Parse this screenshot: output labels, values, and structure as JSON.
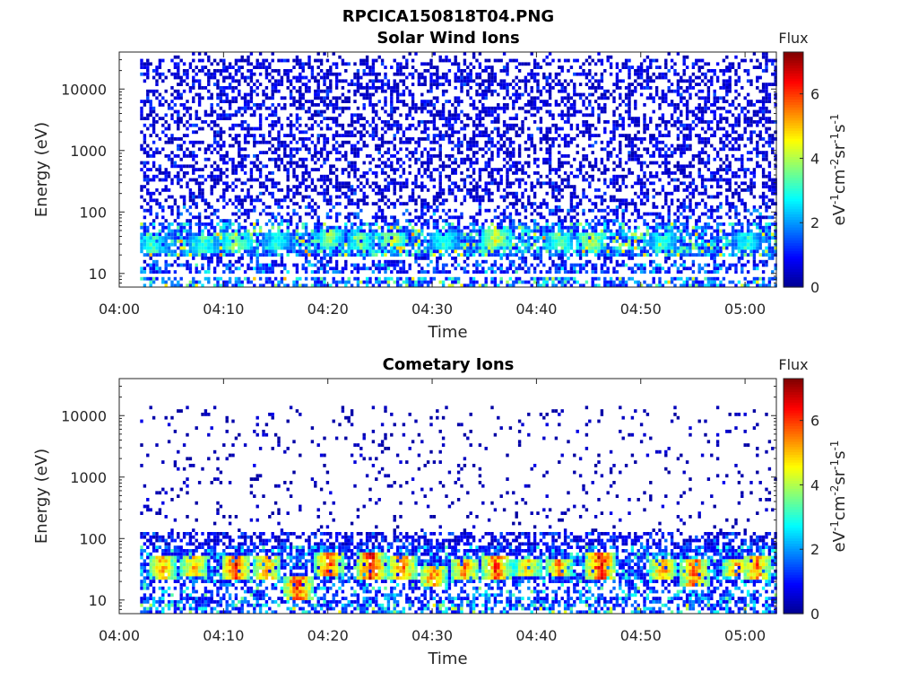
{
  "figure_title": "RPCICA150818T04.PNG",
  "colorbar": {
    "label": "Flux",
    "unit_parts": [
      "eV",
      "-1",
      "cm",
      "-2",
      "sr",
      "-1",
      "s",
      "-1"
    ],
    "ticks": [
      "0",
      "2",
      "4",
      "6"
    ],
    "range": [
      0,
      7.3
    ],
    "colormap": "jet",
    "colors": [
      "#00008f",
      "#0000ff",
      "#007fff",
      "#00ffff",
      "#7fff7f",
      "#ffff00",
      "#ff7f00",
      "#ff0000",
      "#7f0000"
    ]
  },
  "chart_data": [
    {
      "type": "heatmap",
      "title": "Solar Wind Ions",
      "xlabel": "Time",
      "ylabel": "Energy (eV)",
      "x_ticks": [
        "04:00",
        "04:10",
        "04:20",
        "04:30",
        "04:40",
        "04:50",
        "05:00"
      ],
      "y_ticks": [
        "10",
        "100",
        "1000",
        "10000"
      ],
      "xlim": [
        "04:00",
        "05:03"
      ],
      "x_data_start": "04:02",
      "ylim": [
        6,
        40000
      ],
      "yscale": "log",
      "grid": false,
      "flux_range": [
        0,
        7.3
      ],
      "bands": [
        {
          "emin": 6,
          "emax": 9,
          "level": 2.5,
          "density": 0.6
        },
        {
          "emin": 10,
          "emax": 14,
          "level": 1.7,
          "density": 0.55
        },
        {
          "emin": 14,
          "emax": 20,
          "level": 1.2,
          "density": 0.3
        },
        {
          "emin": 20,
          "emax": 45,
          "level": 2.8,
          "density": 0.85
        },
        {
          "emin": 45,
          "emax": 70,
          "level": 2.4,
          "density": 0.7
        },
        {
          "emin": 70,
          "emax": 130,
          "level": 1.2,
          "density": 0.4
        },
        {
          "emin": 130,
          "emax": 30000,
          "level": 0.8,
          "density": 0.45
        },
        {
          "emin": 30000,
          "emax": 40000,
          "level": 0.6,
          "density": 0.12
        }
      ],
      "peaks": [
        {
          "time": "04:03",
          "emin": 25,
          "emax": 35,
          "flux": 3.5
        },
        {
          "time": "04:08",
          "emin": 25,
          "emax": 35,
          "flux": 3.5
        },
        {
          "time": "04:11",
          "emin": 28,
          "emax": 42,
          "flux": 4.2
        },
        {
          "time": "04:15",
          "emin": 28,
          "emax": 40,
          "flux": 3.2
        },
        {
          "time": "04:20",
          "emin": 30,
          "emax": 45,
          "flux": 4.0
        },
        {
          "time": "04:23",
          "emin": 28,
          "emax": 42,
          "flux": 3.6
        },
        {
          "time": "04:26",
          "emin": 30,
          "emax": 42,
          "flux": 4.4
        },
        {
          "time": "04:31",
          "emin": 28,
          "emax": 40,
          "flux": 3.4
        },
        {
          "time": "04:36",
          "emin": 30,
          "emax": 45,
          "flux": 4.6
        },
        {
          "time": "04:42",
          "emin": 28,
          "emax": 40,
          "flux": 3.8
        },
        {
          "time": "04:45",
          "emin": 28,
          "emax": 42,
          "flux": 4.6
        },
        {
          "time": "04:52",
          "emin": 28,
          "emax": 40,
          "flux": 3.3
        },
        {
          "time": "05:00",
          "emin": 28,
          "emax": 40,
          "flux": 3.2
        }
      ]
    },
    {
      "type": "heatmap",
      "title": "Cometary Ions",
      "xlabel": "Time",
      "ylabel": "Energy (eV)",
      "x_ticks": [
        "04:00",
        "04:10",
        "04:20",
        "04:30",
        "04:40",
        "04:50",
        "05:00"
      ],
      "y_ticks": [
        "10",
        "100",
        "1000",
        "10000"
      ],
      "xlim": [
        "04:00",
        "05:03"
      ],
      "x_data_start": "04:02",
      "ylim": [
        6,
        40000
      ],
      "yscale": "log",
      "grid": false,
      "flux_range": [
        0,
        7.3
      ],
      "bands": [
        {
          "emin": 6,
          "emax": 9,
          "level": 2.4,
          "density": 0.6
        },
        {
          "emin": 9,
          "emax": 12,
          "level": 1.8,
          "density": 0.6
        },
        {
          "emin": 12,
          "emax": 20,
          "level": 2.0,
          "density": 0.45
        },
        {
          "emin": 20,
          "emax": 80,
          "level": 1.8,
          "density": 0.75
        },
        {
          "emin": 80,
          "emax": 130,
          "level": 1.0,
          "density": 0.55
        },
        {
          "emin": 130,
          "emax": 14000,
          "level": 0.4,
          "density": 0.07
        }
      ],
      "peaks": [
        {
          "time": "04:04",
          "emin": 25,
          "emax": 45,
          "flux": 5.5
        },
        {
          "time": "04:07",
          "emin": 28,
          "emax": 45,
          "flux": 5.4
        },
        {
          "time": "04:11",
          "emin": 25,
          "emax": 45,
          "flux": 6.5
        },
        {
          "time": "04:14",
          "emin": 25,
          "emax": 45,
          "flux": 5.6
        },
        {
          "time": "04:17",
          "emin": 12,
          "emax": 22,
          "flux": 6.4
        },
        {
          "time": "04:20",
          "emin": 28,
          "emax": 50,
          "flux": 6.2
        },
        {
          "time": "04:24",
          "emin": 25,
          "emax": 50,
          "flux": 6.6
        },
        {
          "time": "04:27",
          "emin": 25,
          "emax": 45,
          "flux": 6.0
        },
        {
          "time": "04:30",
          "emin": 18,
          "emax": 30,
          "flux": 5.8
        },
        {
          "time": "04:33",
          "emin": 25,
          "emax": 40,
          "flux": 5.8
        },
        {
          "time": "04:36",
          "emin": 25,
          "emax": 45,
          "flux": 6.2
        },
        {
          "time": "04:39",
          "emin": 28,
          "emax": 40,
          "flux": 5.2
        },
        {
          "time": "04:42",
          "emin": 28,
          "emax": 40,
          "flux": 5.6
        },
        {
          "time": "04:46",
          "emin": 25,
          "emax": 50,
          "flux": 6.6
        },
        {
          "time": "04:52",
          "emin": 25,
          "emax": 40,
          "flux": 5.6
        },
        {
          "time": "04:55",
          "emin": 18,
          "emax": 40,
          "flux": 6.0
        },
        {
          "time": "04:59",
          "emin": 28,
          "emax": 40,
          "flux": 5.4
        },
        {
          "time": "05:01",
          "emin": 25,
          "emax": 45,
          "flux": 5.8
        }
      ]
    }
  ]
}
